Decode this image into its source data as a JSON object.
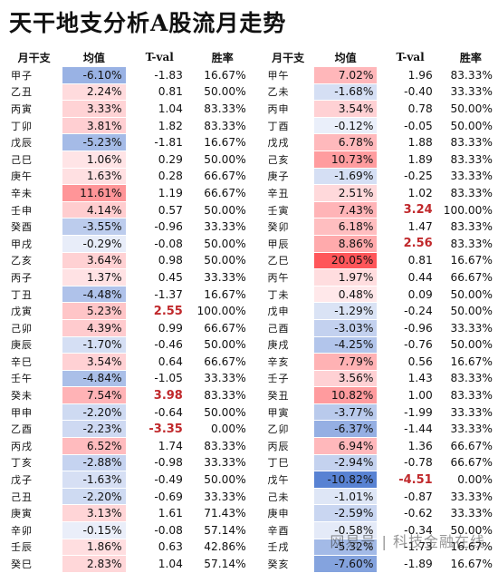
{
  "title": "天干地支分析A股流月走势",
  "headers": {
    "branch": "月干支",
    "mean": "均值",
    "tval": "T-val",
    "winrate": "胜率"
  },
  "watermark": "网易号 | 科技金融在线",
  "colors": {
    "positive": "#e8707a",
    "negative": "#4a72c0"
  },
  "left": [
    {
      "b": "甲子",
      "m": "-6.10%",
      "t": "-1.83",
      "w": "16.67%",
      "v": -6.1,
      "bold": false
    },
    {
      "b": "乙丑",
      "m": "2.24%",
      "t": "0.81",
      "w": "50.00%",
      "v": 2.24,
      "bold": false
    },
    {
      "b": "丙寅",
      "m": "3.33%",
      "t": "1.04",
      "w": "83.33%",
      "v": 3.33,
      "bold": false
    },
    {
      "b": "丁卯",
      "m": "3.81%",
      "t": "1.82",
      "w": "83.33%",
      "v": 3.81,
      "bold": false
    },
    {
      "b": "戊辰",
      "m": "-5.23%",
      "t": "-1.81",
      "w": "16.67%",
      "v": -5.23,
      "bold": false
    },
    {
      "b": "己巳",
      "m": "1.06%",
      "t": "0.29",
      "w": "50.00%",
      "v": 1.06,
      "bold": false
    },
    {
      "b": "庚午",
      "m": "1.63%",
      "t": "0.28",
      "w": "66.67%",
      "v": 1.63,
      "bold": false
    },
    {
      "b": "辛未",
      "m": "11.61%",
      "t": "1.19",
      "w": "66.67%",
      "v": 11.61,
      "bold": false
    },
    {
      "b": "壬申",
      "m": "4.14%",
      "t": "0.57",
      "w": "50.00%",
      "v": 4.14,
      "bold": false
    },
    {
      "b": "癸酉",
      "m": "-3.55%",
      "t": "-0.96",
      "w": "33.33%",
      "v": -3.55,
      "bold": false
    },
    {
      "b": "甲戌",
      "m": "-0.29%",
      "t": "-0.08",
      "w": "50.00%",
      "v": -0.29,
      "bold": false
    },
    {
      "b": "乙亥",
      "m": "3.64%",
      "t": "0.98",
      "w": "50.00%",
      "v": 3.64,
      "bold": false
    },
    {
      "b": "丙子",
      "m": "1.37%",
      "t": "0.45",
      "w": "33.33%",
      "v": 1.37,
      "bold": false
    },
    {
      "b": "丁丑",
      "m": "-4.48%",
      "t": "-1.37",
      "w": "16.67%",
      "v": -4.48,
      "bold": false
    },
    {
      "b": "戊寅",
      "m": "5.23%",
      "t": "2.55",
      "w": "100.00%",
      "v": 5.23,
      "bold": true
    },
    {
      "b": "己卯",
      "m": "4.39%",
      "t": "0.99",
      "w": "66.67%",
      "v": 4.39,
      "bold": false
    },
    {
      "b": "庚辰",
      "m": "-1.70%",
      "t": "-0.46",
      "w": "50.00%",
      "v": -1.7,
      "bold": false
    },
    {
      "b": "辛巳",
      "m": "3.54%",
      "t": "0.64",
      "w": "66.67%",
      "v": 3.54,
      "bold": false
    },
    {
      "b": "壬午",
      "m": "-4.84%",
      "t": "-1.05",
      "w": "33.33%",
      "v": -4.84,
      "bold": false
    },
    {
      "b": "癸未",
      "m": "7.54%",
      "t": "3.98",
      "w": "83.33%",
      "v": 7.54,
      "bold": true
    },
    {
      "b": "甲申",
      "m": "-2.20%",
      "t": "-0.64",
      "w": "50.00%",
      "v": -2.2,
      "bold": false
    },
    {
      "b": "乙酉",
      "m": "-2.23%",
      "t": "-3.35",
      "w": "0.00%",
      "v": -2.23,
      "bold": true
    },
    {
      "b": "丙戌",
      "m": "6.52%",
      "t": "1.74",
      "w": "83.33%",
      "v": 6.52,
      "bold": false
    },
    {
      "b": "丁亥",
      "m": "-2.88%",
      "t": "-0.98",
      "w": "33.33%",
      "v": -2.88,
      "bold": false
    },
    {
      "b": "戊子",
      "m": "-1.63%",
      "t": "-0.49",
      "w": "50.00%",
      "v": -1.63,
      "bold": false
    },
    {
      "b": "己丑",
      "m": "-2.20%",
      "t": "-0.69",
      "w": "33.33%",
      "v": -2.2,
      "bold": false
    },
    {
      "b": "庚寅",
      "m": "3.13%",
      "t": "1.61",
      "w": "71.43%",
      "v": 3.13,
      "bold": false
    },
    {
      "b": "辛卯",
      "m": "-0.15%",
      "t": "-0.08",
      "w": "57.14%",
      "v": -0.15,
      "bold": false
    },
    {
      "b": "壬辰",
      "m": "1.86%",
      "t": "0.63",
      "w": "42.86%",
      "v": 1.86,
      "bold": false
    },
    {
      "b": "癸巳",
      "m": "2.83%",
      "t": "1.04",
      "w": "57.14%",
      "v": 2.83,
      "bold": false
    }
  ],
  "right": [
    {
      "b": "甲午",
      "m": "7.02%",
      "t": "1.96",
      "w": "83.33%",
      "v": 7.02,
      "bold": false
    },
    {
      "b": "乙未",
      "m": "-1.68%",
      "t": "-0.40",
      "w": "33.33%",
      "v": -1.68,
      "bold": false
    },
    {
      "b": "丙申",
      "m": "3.54%",
      "t": "0.78",
      "w": "50.00%",
      "v": 3.54,
      "bold": false
    },
    {
      "b": "丁酉",
      "m": "-0.12%",
      "t": "-0.05",
      "w": "50.00%",
      "v": -0.12,
      "bold": false
    },
    {
      "b": "戊戌",
      "m": "6.78%",
      "t": "1.88",
      "w": "83.33%",
      "v": 6.78,
      "bold": false
    },
    {
      "b": "己亥",
      "m": "10.73%",
      "t": "1.89",
      "w": "83.33%",
      "v": 10.73,
      "bold": false
    },
    {
      "b": "庚子",
      "m": "-1.69%",
      "t": "-0.25",
      "w": "33.33%",
      "v": -1.69,
      "bold": false
    },
    {
      "b": "辛丑",
      "m": "2.51%",
      "t": "1.02",
      "w": "83.33%",
      "v": 2.51,
      "bold": false
    },
    {
      "b": "壬寅",
      "m": "7.43%",
      "t": "3.24",
      "w": "100.00%",
      "v": 7.43,
      "bold": true
    },
    {
      "b": "癸卯",
      "m": "6.18%",
      "t": "1.47",
      "w": "83.33%",
      "v": 6.18,
      "bold": false
    },
    {
      "b": "甲辰",
      "m": "8.86%",
      "t": "2.56",
      "w": "83.33%",
      "v": 8.86,
      "bold": true
    },
    {
      "b": "乙巳",
      "m": "20.05%",
      "t": "0.81",
      "w": "16.67%",
      "v": 20.05,
      "bold": false
    },
    {
      "b": "丙午",
      "m": "1.97%",
      "t": "0.44",
      "w": "66.67%",
      "v": 1.97,
      "bold": false
    },
    {
      "b": "丁未",
      "m": "0.48%",
      "t": "0.09",
      "w": "50.00%",
      "v": 0.48,
      "bold": false
    },
    {
      "b": "戊申",
      "m": "-1.29%",
      "t": "-0.24",
      "w": "50.00%",
      "v": -1.29,
      "bold": false
    },
    {
      "b": "己酉",
      "m": "-3.03%",
      "t": "-0.96",
      "w": "33.33%",
      "v": -3.03,
      "bold": false
    },
    {
      "b": "庚戌",
      "m": "-4.25%",
      "t": "-0.76",
      "w": "50.00%",
      "v": -4.25,
      "bold": false
    },
    {
      "b": "辛亥",
      "m": "7.79%",
      "t": "0.56",
      "w": "16.67%",
      "v": 7.79,
      "bold": false
    },
    {
      "b": "壬子",
      "m": "3.56%",
      "t": "1.43",
      "w": "83.33%",
      "v": 3.56,
      "bold": false
    },
    {
      "b": "癸丑",
      "m": "10.82%",
      "t": "1.00",
      "w": "83.33%",
      "v": 10.82,
      "bold": false
    },
    {
      "b": "甲寅",
      "m": "-3.77%",
      "t": "-1.99",
      "w": "33.33%",
      "v": -3.77,
      "bold": false
    },
    {
      "b": "乙卯",
      "m": "-6.37%",
      "t": "-1.44",
      "w": "33.33%",
      "v": -6.37,
      "bold": false
    },
    {
      "b": "丙辰",
      "m": "6.94%",
      "t": "1.36",
      "w": "66.67%",
      "v": 6.94,
      "bold": false
    },
    {
      "b": "丁巳",
      "m": "-2.94%",
      "t": "-0.78",
      "w": "66.67%",
      "v": -2.94,
      "bold": false
    },
    {
      "b": "戊午",
      "m": "-10.82%",
      "t": "-4.51",
      "w": "0.00%",
      "v": -10.82,
      "bold": true
    },
    {
      "b": "己未",
      "m": "-1.01%",
      "t": "-0.87",
      "w": "33.33%",
      "v": -1.01,
      "bold": false
    },
    {
      "b": "庚申",
      "m": "-2.59%",
      "t": "-0.62",
      "w": "33.33%",
      "v": -2.59,
      "bold": false
    },
    {
      "b": "辛酉",
      "m": "-0.58%",
      "t": "-0.34",
      "w": "50.00%",
      "v": -0.58,
      "bold": false
    },
    {
      "b": "壬戌",
      "m": "-5.32%",
      "t": "-1.73",
      "w": "16.67%",
      "v": -5.32,
      "bold": false
    },
    {
      "b": "癸亥",
      "m": "-7.60%",
      "t": "-1.89",
      "w": "16.67%",
      "v": -7.6,
      "bold": false
    }
  ]
}
